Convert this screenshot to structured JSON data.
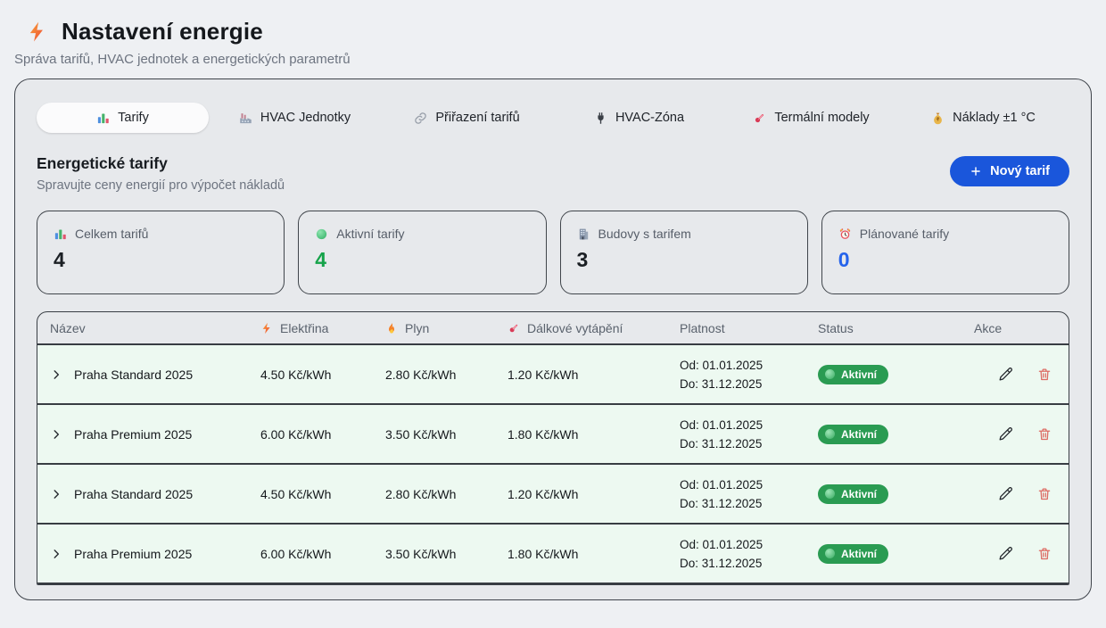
{
  "header": {
    "icon": "bolt-icon",
    "title": "Nastavení energie",
    "subtitle": "Správa tarifů, HVAC jednotek a energetických parametrů"
  },
  "tabs": [
    {
      "key": "tarify",
      "label": "Tarify",
      "icon": "bar-chart-icon",
      "active": true
    },
    {
      "key": "hvac-jednotky",
      "label": "HVAC Jednotky",
      "icon": "factory-icon",
      "active": false
    },
    {
      "key": "prirazeni-tarifu",
      "label": "Přiřazení tarifů",
      "icon": "link-icon",
      "active": false
    },
    {
      "key": "hvac-zona",
      "label": "HVAC-Zóna",
      "icon": "plug-icon",
      "active": false
    },
    {
      "key": "termalni-modely",
      "label": "Termální modely",
      "icon": "thermometer-icon",
      "active": false
    },
    {
      "key": "naklady",
      "label": "Náklady ±1 °C",
      "icon": "money-bag-icon",
      "active": false
    }
  ],
  "section": {
    "title": "Energetické tarify",
    "subtitle": "Spravujte ceny energií pro výpočet nákladů",
    "new_tariff_button": "Nový tarif"
  },
  "stats": [
    {
      "key": "celkem-tarifu",
      "icon": "bar-chart-icon",
      "label": "Celkem tarifů",
      "value": "4",
      "value_color": "#1b1f24"
    },
    {
      "key": "aktivni-tarify",
      "icon": "green-dot-icon",
      "label": "Aktivní tarify",
      "value": "4",
      "value_color": "#16a34a"
    },
    {
      "key": "budovy-s-tarifem",
      "icon": "building-icon",
      "label": "Budovy s tarifem",
      "value": "3",
      "value_color": "#1b1f24"
    },
    {
      "key": "planovane-tarify",
      "icon": "alarm-clock-icon",
      "label": "Plánované tarify",
      "value": "0",
      "value_color": "#2563eb"
    }
  ],
  "table": {
    "columns": [
      {
        "label": "Název",
        "icon": ""
      },
      {
        "label": "Elektřina",
        "icon": "bolt-icon"
      },
      {
        "label": "Plyn",
        "icon": "flame-icon"
      },
      {
        "label": "Dálkové vytápění",
        "icon": "thermometer-icon"
      },
      {
        "label": "Platnost",
        "icon": ""
      },
      {
        "label": "Status",
        "icon": ""
      },
      {
        "label": "Akce",
        "icon": ""
      }
    ],
    "rows": [
      {
        "name": "Praha Standard 2025",
        "electricity": "4.50 Kč/kWh",
        "gas": "2.80 Kč/kWh",
        "district_heating": "1.20 Kč/kWh",
        "valid_from": "Od: 01.01.2025",
        "valid_to": "Do: 31.12.2025",
        "status": "Aktivní"
      },
      {
        "name": "Praha Premium 2025",
        "electricity": "6.00 Kč/kWh",
        "gas": "3.50 Kč/kWh",
        "district_heating": "1.80 Kč/kWh",
        "valid_from": "Od: 01.01.2025",
        "valid_to": "Do: 31.12.2025",
        "status": "Aktivní"
      },
      {
        "name": "Praha Standard 2025",
        "electricity": "4.50 Kč/kWh",
        "gas": "2.80 Kč/kWh",
        "district_heating": "1.20 Kč/kWh",
        "valid_from": "Od: 01.01.2025",
        "valid_to": "Do: 31.12.2025",
        "status": "Aktivní"
      },
      {
        "name": "Praha Premium 2025",
        "electricity": "6.00 Kč/kWh",
        "gas": "3.50 Kč/kWh",
        "district_heating": "1.80 Kč/kWh",
        "valid_from": "Od: 01.01.2025",
        "valid_to": "Do: 31.12.2025",
        "status": "Aktivní"
      }
    ]
  },
  "colors": {
    "accent_blue": "#1a56db",
    "status_green": "#2a9b52",
    "stat_green": "#16a34a",
    "stat_blue": "#2563eb",
    "row_green": "#edf9f1",
    "danger_red": "#dd6a62"
  }
}
